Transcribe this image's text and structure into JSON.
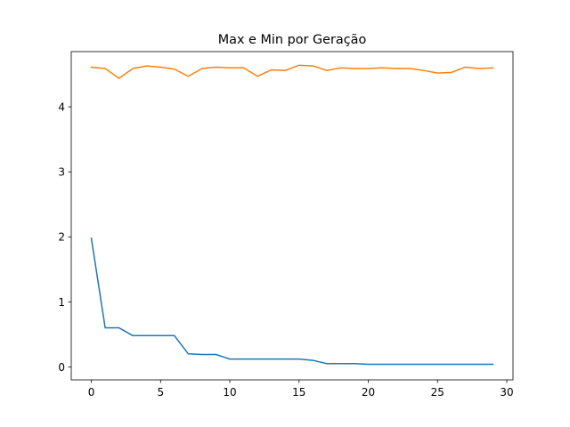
{
  "chart_data": {
    "type": "line",
    "title": "Max e Min por Geração",
    "xlabel": "",
    "ylabel": "",
    "xlim": [
      -1.45,
      30.45
    ],
    "ylim": [
      -0.2,
      4.85
    ],
    "x_ticks": [
      0,
      5,
      10,
      15,
      20,
      25,
      30
    ],
    "y_ticks": [
      0,
      1,
      2,
      3,
      4
    ],
    "grid": false,
    "legend": "none",
    "x": [
      0,
      1,
      2,
      3,
      4,
      5,
      6,
      7,
      8,
      9,
      10,
      11,
      12,
      13,
      14,
      15,
      16,
      17,
      18,
      19,
      20,
      21,
      22,
      23,
      24,
      25,
      26,
      27,
      28,
      29
    ],
    "series": [
      {
        "color": "#1f77b4",
        "values": [
          1.98,
          0.6,
          0.6,
          0.48,
          0.48,
          0.48,
          0.48,
          0.2,
          0.19,
          0.19,
          0.12,
          0.12,
          0.12,
          0.12,
          0.12,
          0.12,
          0.1,
          0.05,
          0.05,
          0.05,
          0.04,
          0.04,
          0.04,
          0.04,
          0.04,
          0.04,
          0.04,
          0.04,
          0.04,
          0.04
        ]
      },
      {
        "color": "#ff7f0e",
        "values": [
          4.61,
          4.59,
          4.44,
          4.59,
          4.63,
          4.61,
          4.58,
          4.47,
          4.59,
          4.61,
          4.6,
          4.6,
          4.47,
          4.57,
          4.56,
          4.64,
          4.63,
          4.56,
          4.6,
          4.59,
          4.59,
          4.6,
          4.59,
          4.59,
          4.56,
          4.52,
          4.53,
          4.61,
          4.59,
          4.6
        ]
      }
    ]
  }
}
